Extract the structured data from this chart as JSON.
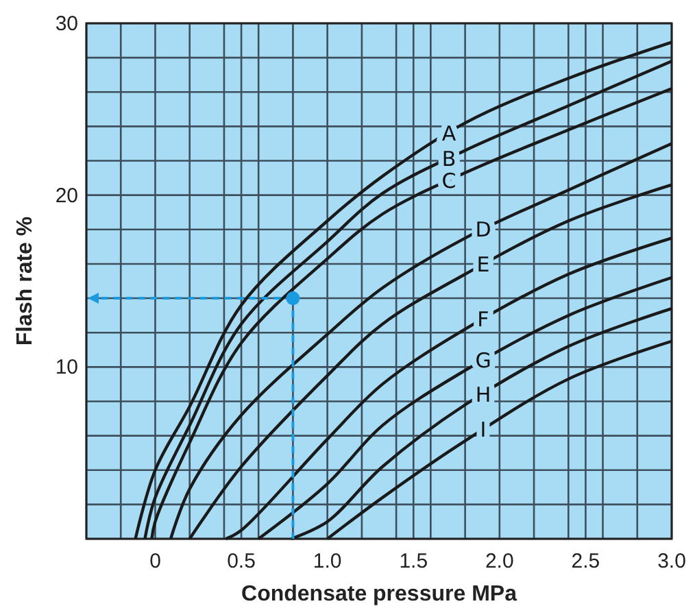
{
  "chart_data": {
    "type": "line",
    "xlabel": "Condensate pressure MPa",
    "ylabel": "Flash rate %",
    "xlim": [
      -0.4,
      3.0
    ],
    "ylim": [
      0,
      30
    ],
    "xticks": [
      {
        "value": -0.4,
        "label": null
      },
      {
        "value": -0.2,
        "label": null
      },
      0,
      {
        "value": 0.2,
        "label": null
      },
      {
        "value": 0.4,
        "label": null
      },
      0.5,
      {
        "value": 0.6,
        "label": null
      },
      {
        "value": 0.8,
        "label": null
      },
      {
        "value": 1.0,
        "label": "1.0"
      },
      {
        "value": 1.2,
        "label": null
      },
      {
        "value": 1.4,
        "label": null
      },
      1.5,
      {
        "value": 1.6,
        "label": null
      },
      {
        "value": 1.8,
        "label": null
      },
      {
        "value": 2.0,
        "label": "2.0"
      },
      {
        "value": 2.2,
        "label": null
      },
      {
        "value": 2.4,
        "label": null
      },
      2.5,
      {
        "value": 2.6,
        "label": null
      },
      {
        "value": 2.8,
        "label": null
      },
      {
        "value": 3.0,
        "label": "3.0"
      }
    ],
    "yticks": [
      {
        "value": 0,
        "label": null
      },
      {
        "value": 2,
        "label": null
      },
      {
        "value": 4,
        "label": null
      },
      {
        "value": 6,
        "label": null
      },
      {
        "value": 8,
        "label": null
      },
      10,
      {
        "value": 12,
        "label": null
      },
      {
        "value": 14,
        "label": null
      },
      {
        "value": 16,
        "label": null
      },
      {
        "value": 18,
        "label": null
      },
      20,
      {
        "value": 22,
        "label": null
      },
      {
        "value": 24,
        "label": null
      },
      {
        "value": 26,
        "label": null
      },
      {
        "value": 28,
        "label": null
      },
      30
    ],
    "grid": true,
    "line_style": "solid",
    "series": [
      {
        "name": "A",
        "color": "#1a1a1a",
        "x": [
          -0.115,
          0,
          0.2,
          0.5,
          1.0,
          1.32,
          1.8,
          2.4,
          3.0
        ],
        "values": [
          0,
          4.0,
          7.7,
          13.6,
          18.5,
          21.1,
          24.2,
          26.8,
          28.9
        ]
      },
      {
        "name": "B",
        "color": "#1a1a1a",
        "x": [
          -0.06,
          0,
          0.2,
          0.5,
          1.0,
          1.32,
          1.8,
          2.4,
          3.0
        ],
        "values": [
          0,
          2.4,
          6.6,
          12.5,
          17.3,
          20.1,
          22.6,
          25.2,
          27.8
        ]
      },
      {
        "name": "C",
        "color": "#1a1a1a",
        "x": [
          -0.02,
          0,
          0.2,
          0.5,
          1.0,
          1.32,
          1.8,
          2.4,
          3.0
        ],
        "values": [
          0,
          1.0,
          5.6,
          11.4,
          16.3,
          18.9,
          21.3,
          23.8,
          26.2
        ]
      },
      {
        "name": "D",
        "color": "#1a1a1a",
        "x": [
          0.09,
          0.2,
          0.5,
          1.0,
          1.32,
          1.8,
          2.4,
          3.0
        ],
        "values": [
          0,
          2.9,
          7.2,
          11.9,
          14.6,
          17.5,
          20.3,
          23.0
        ]
      },
      {
        "name": "E",
        "color": "#1a1a1a",
        "x": [
          0.2,
          0.5,
          1.0,
          1.32,
          1.8,
          2.4,
          3.0
        ],
        "values": [
          0,
          4.2,
          9.5,
          12.5,
          15.4,
          18.5,
          20.6
        ]
      },
      {
        "name": "F",
        "color": "#1a1a1a",
        "x": [
          0.41,
          0.5,
          1.0,
          1.32,
          1.8,
          2.4,
          3.0
        ],
        "values": [
          0,
          0.5,
          5.8,
          9.0,
          12.2,
          15.4,
          17.5
        ]
      },
      {
        "name": "G",
        "color": "#1a1a1a",
        "x": [
          0.6,
          1.0,
          1.32,
          1.8,
          2.4,
          3.0
        ],
        "values": [
          0,
          3.2,
          6.6,
          9.8,
          13.0,
          15.2
        ]
      },
      {
        "name": "H",
        "color": "#1a1a1a",
        "x": [
          0.79,
          1.0,
          1.32,
          1.8,
          2.4,
          3.0
        ],
        "values": [
          0,
          1.0,
          4.2,
          7.8,
          11.2,
          13.4
        ]
      },
      {
        "name": "I",
        "color": "#1a1a1a",
        "x": [
          1.0,
          1.32,
          1.8,
          2.4,
          3.0
        ],
        "values": [
          0,
          2.4,
          5.7,
          9.3,
          11.5
        ]
      },
      {
        "type": "scatter",
        "color": "#1a9be0",
        "x": [
          0.8
        ],
        "values": [
          14
        ],
        "marker": "circle"
      }
    ]
  }
}
